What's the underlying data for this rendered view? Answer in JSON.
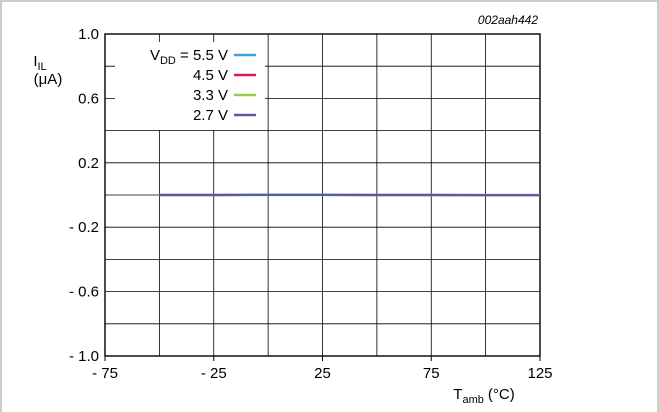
{
  "chart_data": {
    "type": "line",
    "figure_ref": "002aah442",
    "ylabel": {
      "main": "I",
      "sub": "IL",
      "unit": "(μA)"
    },
    "xlabel": {
      "main": "T",
      "sub": "amb",
      "unit": "(°C)"
    },
    "xlim": [
      -75,
      125
    ],
    "ylim": [
      -1.0,
      1.0
    ],
    "x_grid_step": 25,
    "y_grid_step": 0.2,
    "x_tick_labels": [
      {
        "value": -75,
        "text": "- 75"
      },
      {
        "value": -25,
        "text": "- 25"
      },
      {
        "value": 25,
        "text": "25"
      },
      {
        "value": 75,
        "text": "75"
      },
      {
        "value": 125,
        "text": "125"
      }
    ],
    "y_tick_labels": [
      {
        "value": 1.0,
        "text": "1.0"
      },
      {
        "value": 0.6,
        "text": "0.6"
      },
      {
        "value": 0.2,
        "text": "0.2"
      },
      {
        "value": -0.2,
        "text": "- 0.2"
      },
      {
        "value": -0.6,
        "text": "- 0.6"
      },
      {
        "value": -1.0,
        "text": "- 1.0"
      }
    ],
    "grid": true,
    "legend_position": "top-left",
    "legend_prefix": {
      "main": "V",
      "sub": "DD",
      "eq": " = "
    },
    "x": [
      -50,
      -25,
      0,
      25,
      50,
      75,
      100,
      125
    ],
    "series": [
      {
        "name": "5.5 V",
        "color": "#3aa0e0",
        "values": [
          0.0,
          0.0,
          0.0,
          0.0,
          0.0,
          0.0,
          0.0,
          0.0
        ]
      },
      {
        "name": "4.5 V",
        "color": "#d81b60",
        "values": [
          0.0,
          0.0,
          0.001,
          0.001,
          0.0,
          0.0,
          -0.001,
          -0.001
        ]
      },
      {
        "name": "3.3 V",
        "color": "#8fd14f",
        "values": [
          0.0,
          0.0,
          0.001,
          0.001,
          0.0,
          0.0,
          -0.001,
          -0.001
        ]
      },
      {
        "name": "2.7 V",
        "color": "#5a5aa8",
        "values": [
          0.0,
          0.0,
          0.001,
          0.001,
          0.0,
          0.0,
          -0.001,
          -0.001
        ]
      }
    ]
  }
}
